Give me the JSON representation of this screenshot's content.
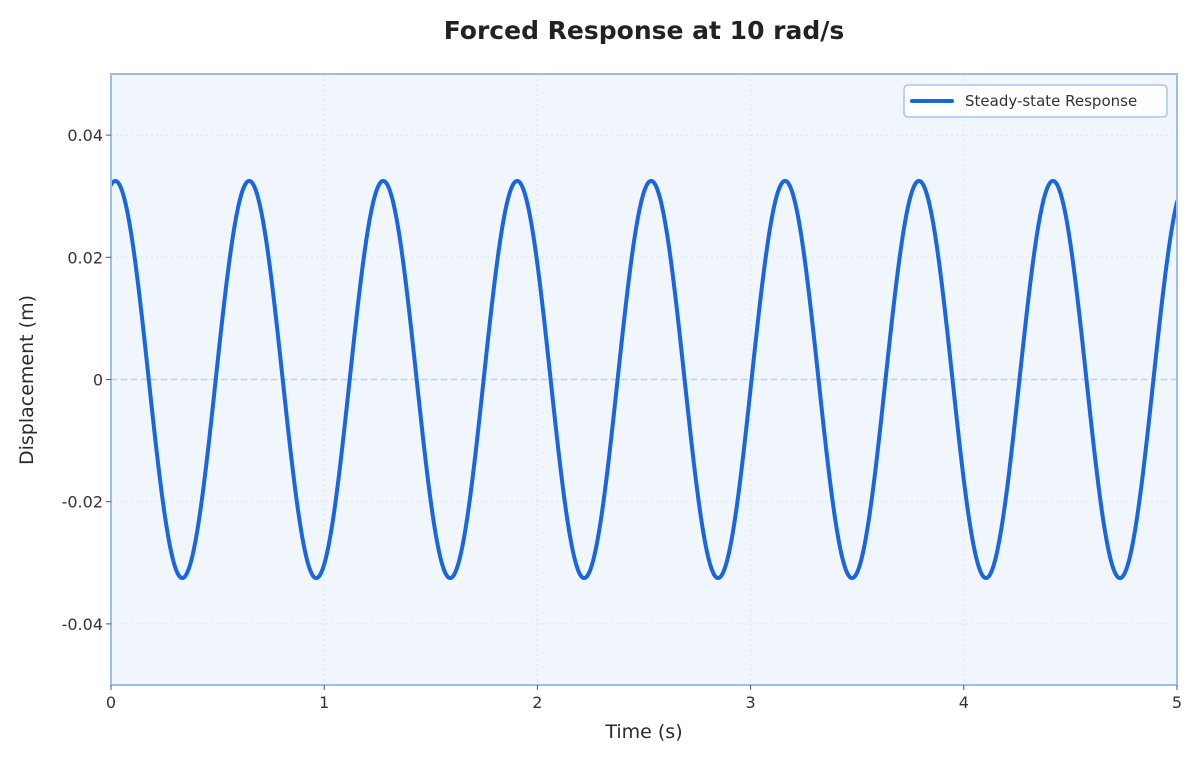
{
  "chart_data": {
    "type": "line",
    "title": "Forced Response at 10 rad/s",
    "xlabel": "Time (s)",
    "ylabel": "Displacement (m)",
    "xlim": [
      0,
      5
    ],
    "ylim": [
      -0.05,
      0.05
    ],
    "x_ticks": [
      0,
      1,
      2,
      3,
      4,
      5
    ],
    "x_tick_labels": [
      "0",
      "1",
      "2",
      "3",
      "4",
      "5"
    ],
    "y_ticks": [
      -0.04,
      -0.02,
      0,
      0.02,
      0.04
    ],
    "y_tick_labels": [
      "-0.04",
      "-0.02",
      "0",
      "0.02",
      "0.04"
    ],
    "grid": true,
    "legend_position": "top-right",
    "zero_reference_line": true,
    "series": [
      {
        "name": "Steady-state Response",
        "color": "#1a66e0",
        "function": {
          "form": "amplitude * cos(omega * t - phase)",
          "amplitude": 0.0325,
          "omega": 10,
          "phase": 0.2
        },
        "sample_points": {
          "x": [
            0,
            0.02,
            0.33,
            0.64,
            0.96,
            1.27,
            1.58,
            1.9,
            2.21,
            2.53,
            2.84,
            3.16,
            3.47,
            3.79,
            4.1,
            4.42,
            4.73,
            5.0
          ],
          "y": [
            0.0319,
            0.0325,
            -0.0325,
            0.0325,
            -0.0325,
            0.0325,
            -0.0325,
            0.0325,
            -0.0325,
            0.0325,
            -0.0325,
            0.0325,
            -0.0325,
            0.0325,
            -0.0325,
            0.0325,
            -0.0325,
            0.0295
          ]
        }
      }
    ],
    "colors": {
      "plot_background": "#f1f6fc",
      "frame": "#9dbcee",
      "grid": "#d9e3f2",
      "zero_line": "#bcd0f0",
      "line": "#1a66e0",
      "legend_border": "#a9c4f0"
    }
  }
}
